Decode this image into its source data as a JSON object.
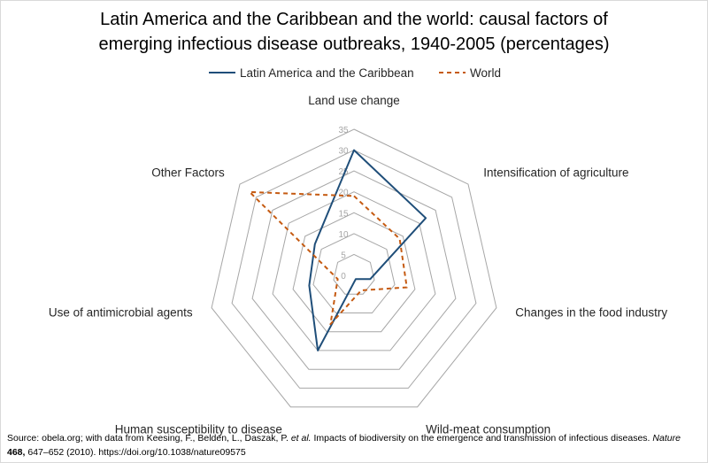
{
  "chart_data": {
    "type": "radar",
    "title_lines": [
      "Latin America and the Caribbean and the world: causal factors of",
      "emerging infectious disease outbreaks, 1940-2005 (percentages)"
    ],
    "axes": [
      "Land use change",
      "Intensification of agriculture",
      "Changes in the food industry",
      "Wild-meat consumption",
      "Human susceptibility to disease",
      "Use of antimicrobial agents",
      "Other Factors"
    ],
    "ticks": [
      "0",
      "5",
      "10",
      "15",
      "20",
      "25",
      "30",
      "35"
    ],
    "rmax": 35,
    "series": [
      {
        "name": "Latin America and the Caribbean",
        "color": "#1f4e79",
        "dash": "solid",
        "values": [
          30,
          22,
          4,
          1,
          20,
          11,
          12
        ]
      },
      {
        "name": "World",
        "color": "#c55a11",
        "dash": "dashed",
        "values": [
          19,
          14,
          13,
          4,
          13,
          4,
          32
        ]
      }
    ]
  },
  "source": {
    "prefix": "Source: obela.org; with data from Keesing, F., Belden, L., Daszak, P.",
    "etal": "et al.",
    "article": "Impacts of biodiversity on the emergence and transmission of infectious diseases.",
    "journal": "Nature",
    "volume": "468,",
    "pages": "647–652 (2010). https://doi.org/10.1038/nature09575"
  }
}
